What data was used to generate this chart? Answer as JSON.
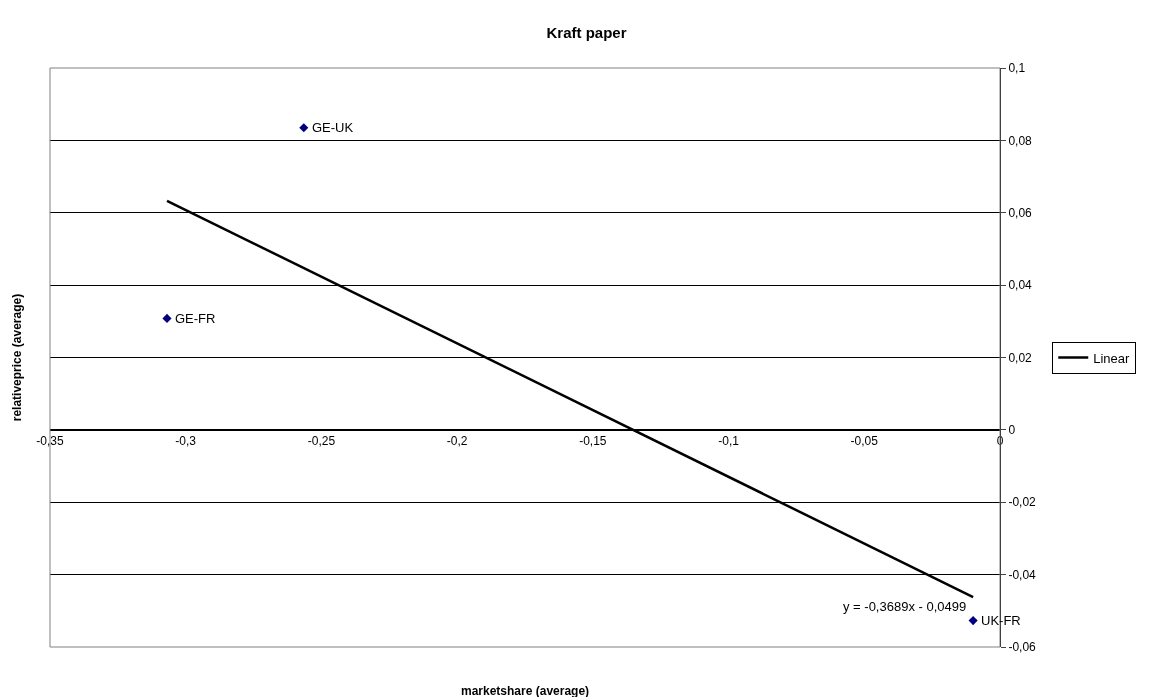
{
  "chart_data": {
    "type": "scatter",
    "title": "Kraft paper",
    "xlabel": "marketshare (average)",
    "ylabel": "relativeprice (average)",
    "series": [
      {
        "color": "#000080",
        "x": [
          -0.2565,
          -0.3069,
          -0.0099
        ],
        "values": [
          0.0835,
          0.0308,
          -0.0527
        ]
      },
      {
        "name": "Linear",
        "type": "line",
        "color": "#000000",
        "x": [
          -0.3069,
          -0.0099
        ],
        "values": [
          0.0633,
          -0.0462
        ],
        "marker": "none"
      }
    ],
    "annotations": [
      {
        "text": "GE-UK",
        "x": -0.2565,
        "y": 0.0835
      },
      {
        "text": "GE-FR",
        "x": -0.3069,
        "y": 0.0308
      },
      {
        "text": "UK-FR",
        "x": -0.0099,
        "y": -0.0527
      },
      {
        "text": "y = -0,3689x - 0,0499",
        "x": -0.0099,
        "y": -0.0462
      }
    ],
    "xlim": [
      -0.35,
      0
    ],
    "ylim": [
      -0.06,
      0.1
    ],
    "xticks": [
      {
        "value": -0.35,
        "label": "-0,35"
      },
      {
        "value": -0.3,
        "label": "-0,3"
      },
      {
        "value": -0.25,
        "label": "-0,25"
      },
      {
        "value": -0.2,
        "label": "-0,2"
      },
      {
        "value": -0.15,
        "label": "-0,15"
      },
      {
        "value": -0.1,
        "label": "-0,1"
      },
      {
        "value": -0.05,
        "label": "-0,05"
      },
      0
    ],
    "yticks": [
      {
        "value": -0.06,
        "label": "-0,06"
      },
      {
        "value": -0.04,
        "label": "-0,04"
      },
      {
        "value": -0.02,
        "label": "-0,02"
      },
      0,
      {
        "value": 0.02,
        "label": "0,02"
      },
      {
        "value": 0.04,
        "label": "0,04"
      },
      {
        "value": 0.06,
        "label": "0,06"
      },
      {
        "value": 0.08,
        "label": "0,08"
      },
      {
        "value": 0.1,
        "label": "0,1"
      }
    ],
    "grid": "y",
    "legend": "right",
    "marker": "diamond"
  }
}
